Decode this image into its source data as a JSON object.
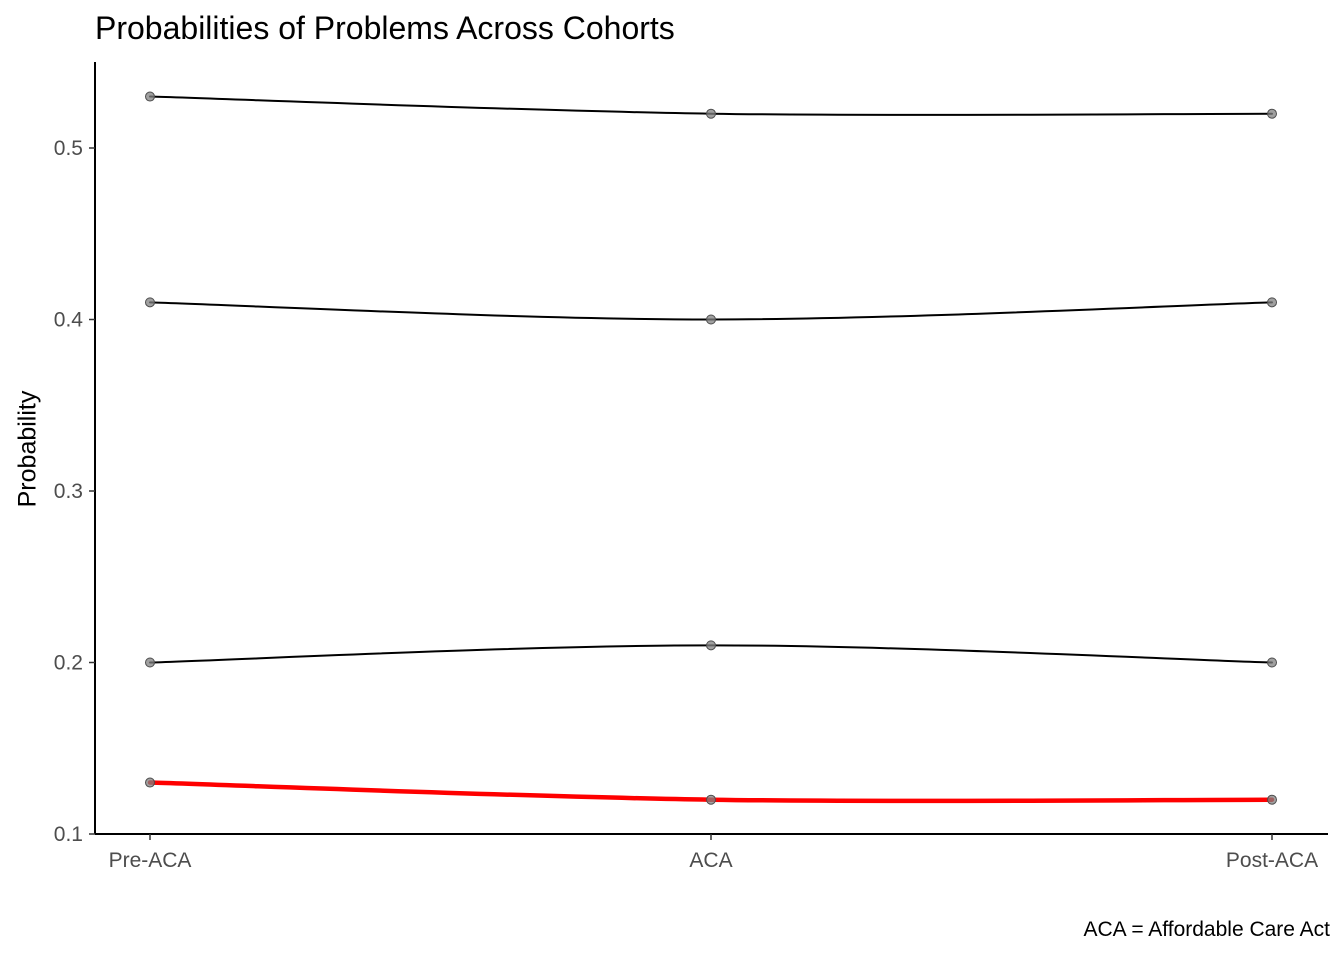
{
  "chart_data": {
    "type": "line",
    "title": "Probabilities of Problems Across Cohorts",
    "xlabel": "",
    "ylabel": "Probability",
    "caption": "ACA = Affordable Care Act",
    "categories": [
      "Pre-ACA",
      "ACA",
      "Post-ACA"
    ],
    "ylim": [
      0.1,
      0.55
    ],
    "yticks": [
      0.1,
      0.2,
      0.3,
      0.4,
      0.5
    ],
    "ytick_labels": [
      "0.1",
      "0.2",
      "0.3",
      "0.4",
      "0.5"
    ],
    "grid": false,
    "legend": "none",
    "series": [
      {
        "values": [
          0.53,
          0.52,
          0.52
        ],
        "color": "#000000",
        "highlight": false
      },
      {
        "values": [
          0.41,
          0.4,
          0.41
        ],
        "color": "#000000",
        "highlight": false
      },
      {
        "values": [
          0.2,
          0.21,
          0.2
        ],
        "color": "#000000",
        "highlight": false
      },
      {
        "values": [
          0.13,
          0.12,
          0.12
        ],
        "color": "#ff0000",
        "highlight": true
      }
    ],
    "point_color": "#808080"
  }
}
